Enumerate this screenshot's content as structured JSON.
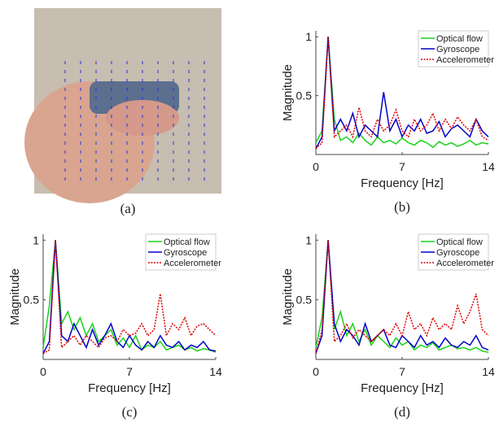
{
  "image": {
    "caption": "(a)"
  },
  "chart_data": [
    {
      "type": "line",
      "caption": "(b)",
      "xlabel": "Frequency [Hz]",
      "ylabel": "Magnitude",
      "x": [
        0,
        0.5,
        1,
        1.5,
        2,
        2.5,
        3,
        3.5,
        4,
        4.5,
        5,
        5.5,
        6,
        6.5,
        7,
        7.5,
        8,
        8.5,
        9,
        9.5,
        10,
        10.5,
        11,
        11.5,
        12,
        12.5,
        13,
        13.5,
        14
      ],
      "xlim": [
        0,
        14
      ],
      "xticks": [
        0,
        7,
        14
      ],
      "ylim": [
        0,
        1.05
      ],
      "yticks": [
        0.5,
        1
      ],
      "legend": "upper right",
      "series": [
        {
          "name": "Optical flow",
          "color": "#19d219",
          "dash": "solid",
          "values": [
            0.1,
            0.2,
            1,
            0.3,
            0.12,
            0.15,
            0.1,
            0.18,
            0.12,
            0.08,
            0.15,
            0.1,
            0.12,
            0.09,
            0.14,
            0.1,
            0.08,
            0.12,
            0.1,
            0.06,
            0.11,
            0.08,
            0.1,
            0.07,
            0.09,
            0.12,
            0.08,
            0.1,
            0.09
          ]
        },
        {
          "name": "Gyroscope",
          "color": "#0000c8",
          "dash": "solid",
          "values": [
            0.05,
            0.15,
            1,
            0.2,
            0.3,
            0.2,
            0.35,
            0.15,
            0.25,
            0.2,
            0.15,
            0.53,
            0.2,
            0.3,
            0.15,
            0.25,
            0.2,
            0.3,
            0.18,
            0.2,
            0.28,
            0.15,
            0.22,
            0.25,
            0.2,
            0.15,
            0.3,
            0.2,
            0.15
          ]
        },
        {
          "name": "Accelerometer",
          "color": "#dd0000",
          "dash": "dotted",
          "values": [
            0.05,
            0.1,
            1,
            0.15,
            0.2,
            0.25,
            0.15,
            0.4,
            0.2,
            0.15,
            0.3,
            0.2,
            0.25,
            0.38,
            0.2,
            0.15,
            0.3,
            0.2,
            0.25,
            0.35,
            0.2,
            0.3,
            0.22,
            0.32,
            0.25,
            0.2,
            0.3,
            0.15,
            0.12
          ]
        }
      ]
    },
    {
      "type": "line",
      "caption": "(c)",
      "xlabel": "Frequency [Hz]",
      "ylabel": "Magnitude",
      "x": [
        0,
        0.5,
        1,
        1.5,
        2,
        2.5,
        3,
        3.5,
        4,
        4.5,
        5,
        5.5,
        6,
        6.5,
        7,
        7.5,
        8,
        8.5,
        9,
        9.5,
        10,
        10.5,
        11,
        11.5,
        12,
        12.5,
        13,
        13.5,
        14
      ],
      "xlim": [
        0,
        14
      ],
      "xticks": [
        0,
        7,
        14
      ],
      "ylim": [
        0,
        1.05
      ],
      "yticks": [
        0.5,
        1
      ],
      "legend": "upper right",
      "series": [
        {
          "name": "Optical flow",
          "color": "#19d219",
          "dash": "solid",
          "values": [
            0.1,
            0.45,
            1,
            0.3,
            0.4,
            0.25,
            0.35,
            0.2,
            0.3,
            0.15,
            0.2,
            0.25,
            0.12,
            0.18,
            0.1,
            0.2,
            0.08,
            0.12,
            0.1,
            0.15,
            0.08,
            0.1,
            0.12,
            0.08,
            0.1,
            0.07,
            0.09,
            0.08,
            0.06
          ]
        },
        {
          "name": "Gyroscope",
          "color": "#0000c8",
          "dash": "solid",
          "values": [
            0.05,
            0.15,
            1,
            0.2,
            0.15,
            0.3,
            0.2,
            0.1,
            0.25,
            0.12,
            0.2,
            0.3,
            0.15,
            0.1,
            0.2,
            0.12,
            0.08,
            0.15,
            0.1,
            0.2,
            0.12,
            0.1,
            0.15,
            0.08,
            0.12,
            0.1,
            0.15,
            0.08,
            0.07
          ]
        },
        {
          "name": "Accelerometer",
          "color": "#dd0000",
          "dash": "dotted",
          "values": [
            0.05,
            0.08,
            1,
            0.1,
            0.15,
            0.2,
            0.12,
            0.2,
            0.15,
            0.1,
            0.18,
            0.2,
            0.15,
            0.25,
            0.2,
            0.22,
            0.3,
            0.2,
            0.25,
            0.55,
            0.2,
            0.3,
            0.25,
            0.35,
            0.2,
            0.28,
            0.3,
            0.25,
            0.2
          ]
        }
      ]
    },
    {
      "type": "line",
      "caption": "(d)",
      "xlabel": "Frequency [Hz]",
      "ylabel": "Magnitude",
      "x": [
        0,
        0.5,
        1,
        1.5,
        2,
        2.5,
        3,
        3.5,
        4,
        4.5,
        5,
        5.5,
        6,
        6.5,
        7,
        7.5,
        8,
        8.5,
        9,
        9.5,
        10,
        10.5,
        11,
        11.5,
        12,
        12.5,
        13,
        13.5,
        14
      ],
      "xlim": [
        0,
        14
      ],
      "xticks": [
        0,
        7,
        14
      ],
      "ylim": [
        0,
        1.05
      ],
      "yticks": [
        0.5,
        1
      ],
      "legend": "upper right",
      "series": [
        {
          "name": "Optical flow",
          "color": "#19d219",
          "dash": "solid",
          "values": [
            0.1,
            0.35,
            1,
            0.25,
            0.4,
            0.2,
            0.3,
            0.15,
            0.25,
            0.12,
            0.2,
            0.15,
            0.1,
            0.18,
            0.12,
            0.15,
            0.08,
            0.12,
            0.1,
            0.14,
            0.08,
            0.1,
            0.12,
            0.09,
            0.1,
            0.08,
            0.1,
            0.07,
            0.06
          ]
        },
        {
          "name": "Gyroscope",
          "color": "#0000c8",
          "dash": "solid",
          "values": [
            0.05,
            0.2,
            1,
            0.3,
            0.15,
            0.25,
            0.2,
            0.12,
            0.3,
            0.15,
            0.2,
            0.25,
            0.12,
            0.1,
            0.2,
            0.15,
            0.1,
            0.2,
            0.12,
            0.15,
            0.1,
            0.18,
            0.12,
            0.1,
            0.15,
            0.12,
            0.2,
            0.1,
            0.08
          ]
        },
        {
          "name": "Accelerometer",
          "color": "#dd0000",
          "dash": "dotted",
          "values": [
            0.05,
            0.25,
            1,
            0.15,
            0.2,
            0.3,
            0.18,
            0.25,
            0.2,
            0.15,
            0.2,
            0.25,
            0.2,
            0.3,
            0.2,
            0.4,
            0.25,
            0.3,
            0.2,
            0.35,
            0.25,
            0.3,
            0.25,
            0.45,
            0.3,
            0.4,
            0.55,
            0.25,
            0.2
          ]
        }
      ]
    }
  ]
}
